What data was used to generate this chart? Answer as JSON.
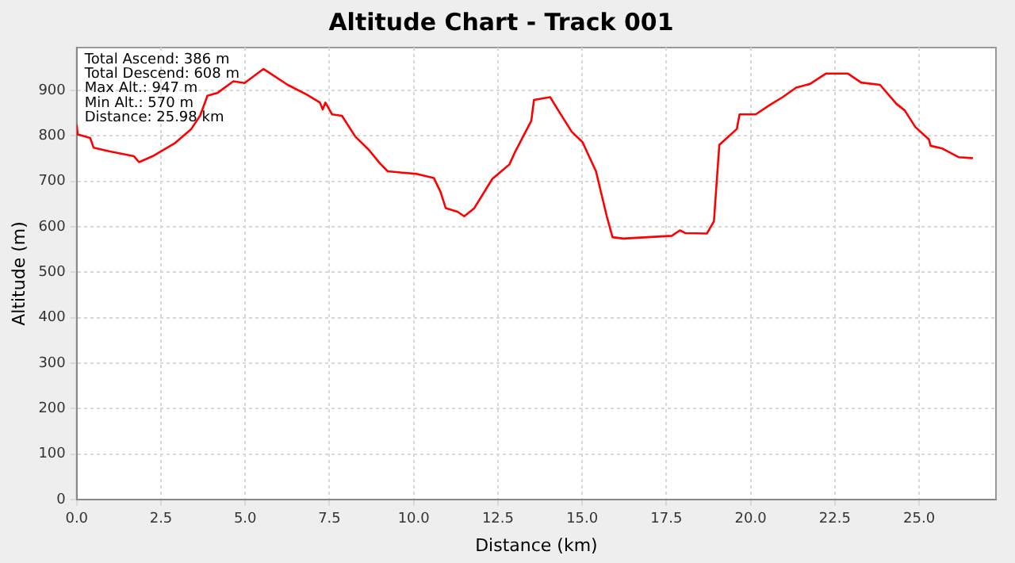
{
  "chart_data": {
    "type": "line",
    "title": "Altitude Chart - Track 001",
    "xlabel": "Distance (km)",
    "ylabel": "Altitude (m)",
    "annotations": [
      "Total Ascend: 386 m",
      "Total Descend: 608 m",
      "Max Alt.: 947 m",
      "Min Alt.: 570 m",
      "Distance: 25.98 km"
    ],
    "xlim": [
      0,
      27.28
    ],
    "ylim": [
      0,
      994
    ],
    "xticks": [
      {
        "value": 0,
        "label": "0.0"
      },
      {
        "value": 2.5,
        "label": "2.5"
      },
      {
        "value": 5,
        "label": "5.0"
      },
      {
        "value": 7.5,
        "label": "7.5"
      },
      {
        "value": 10,
        "label": "10.0"
      },
      {
        "value": 12.5,
        "label": "12.5"
      },
      {
        "value": 15,
        "label": "15.0"
      },
      {
        "value": 17.5,
        "label": "17.5"
      },
      {
        "value": 20,
        "label": "20.0"
      },
      {
        "value": 22.5,
        "label": "22.5"
      },
      {
        "value": 25,
        "label": "25.0"
      }
    ],
    "yticks": [
      0,
      100,
      200,
      300,
      400,
      500,
      600,
      700,
      800,
      900
    ],
    "grid": true,
    "legend": false,
    "marker": "none",
    "line_style": "solid",
    "x": [
      0,
      0.03,
      0.4,
      0.5,
      0.96,
      1.7,
      1.85,
      2.25,
      2.9,
      3.4,
      3.66,
      3.88,
      4.17,
      4.65,
      4.98,
      5.54,
      6.26,
      6.82,
      7.22,
      7.3,
      7.38,
      7.58,
      7.87,
      8.27,
      8.67,
      8.99,
      9.23,
      10.1,
      10.6,
      10.8,
      10.95,
      11.3,
      11.5,
      11.8,
      12.33,
      12.6,
      12.84,
      13.0,
      13.49,
      13.57,
      14.05,
      14.29,
      14.69,
      15.01,
      15.41,
      15.73,
      15.9,
      16.22,
      17.66,
      17.9,
      18.06,
      18.7,
      18.91,
      19.07,
      19.59,
      19.67,
      20.15,
      20.55,
      20.95,
      21.35,
      21.76,
      22.24,
      22.88,
      23.28,
      23.84,
      24.33,
      24.57,
      24.89,
      25.29,
      25.34,
      25.69,
      26.17,
      26.57
    ],
    "series": [
      {
        "color": "#ff0000",
        "values": [
          823,
          803,
          795,
          774,
          766,
          755,
          742,
          755,
          783,
          815,
          844,
          888,
          894,
          920,
          916,
          947,
          912,
          891,
          873,
          858,
          873,
          847,
          844,
          798,
          769,
          740,
          722,
          716,
          707,
          676,
          641,
          633,
          623,
          641,
          705,
          722,
          737,
          763,
          833,
          879,
          885,
          856,
          809,
          786,
          722,
          623,
          577,
          574,
          580,
          592,
          586,
          585,
          612,
          780,
          815,
          847,
          847,
          867,
          885,
          906,
          914,
          937,
          937,
          917,
          912,
          870,
          856,
          819,
          792,
          778,
          772,
          753,
          751
        ]
      }
    ]
  }
}
